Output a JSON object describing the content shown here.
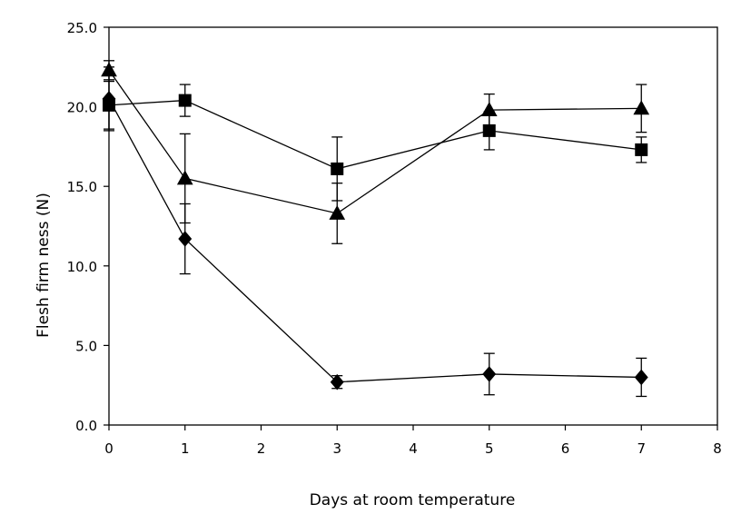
{
  "chart_data": {
    "type": "line",
    "title": "",
    "xlabel": "Days at room temperature",
    "ylabel": "Flesh firm ness (N)",
    "xlim": [
      0,
      8
    ],
    "ylim": [
      0,
      25
    ],
    "xticks": [
      "0",
      "1",
      "2",
      "3",
      "4",
      "5",
      "6",
      "7",
      "8"
    ],
    "yticks": [
      "0.0",
      "5.0",
      "10.0",
      "15.0",
      "20.0",
      "25.0"
    ],
    "grid": false,
    "legend": "none",
    "x": [
      0,
      1,
      3,
      5,
      7
    ],
    "series": [
      {
        "marker": "diamond",
        "values": [
          20.5,
          11.7,
          2.7,
          3.2,
          3.0
        ],
        "errors": [
          2.0,
          2.2,
          0.4,
          1.3,
          1.2
        ]
      },
      {
        "marker": "square",
        "values": [
          20.1,
          20.4,
          16.1,
          18.5,
          17.3
        ],
        "errors": [
          1.5,
          1.0,
          2.0,
          1.2,
          0.8
        ]
      },
      {
        "marker": "triangle",
        "values": [
          22.3,
          15.5,
          13.3,
          19.8,
          19.9
        ],
        "errors": [
          0.6,
          2.8,
          1.9,
          1.0,
          1.5
        ]
      }
    ]
  }
}
